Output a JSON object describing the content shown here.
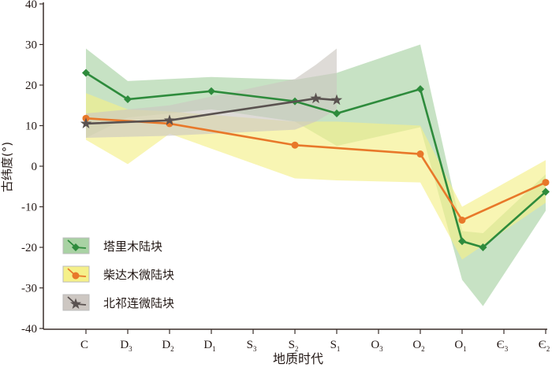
{
  "chart_data": {
    "type": "line",
    "xlabel": "地质时代",
    "ylabel": "古纬度(°)",
    "ylim": [
      -40,
      40
    ],
    "yticks": [
      "40",
      "30",
      "20",
      "10",
      "0",
      "-10",
      "-20",
      "-30",
      "-40"
    ],
    "ytick_values": [
      40,
      30,
      20,
      10,
      0,
      -10,
      -20,
      -30,
      -40
    ],
    "categories": [
      {
        "base": "C",
        "sub": ""
      },
      {
        "base": "D",
        "sub": "3"
      },
      {
        "base": "D",
        "sub": "2"
      },
      {
        "base": "D",
        "sub": "1"
      },
      {
        "base": "S",
        "sub": "3"
      },
      {
        "base": "S",
        "sub": "2"
      },
      {
        "base": "S",
        "sub": "1"
      },
      {
        "base": "O",
        "sub": "3"
      },
      {
        "base": "O",
        "sub": "2"
      },
      {
        "base": "O",
        "sub": "1"
      },
      {
        "base": "Є",
        "sub": "3"
      },
      {
        "base": "Є",
        "sub": "2"
      }
    ],
    "series": [
      {
        "name": "塔里木陆块",
        "color": "#2e8b3c",
        "band_color": "#a9d2a4",
        "marker": "diamond",
        "points": [
          [
            0,
            23
          ],
          [
            1,
            16.5
          ],
          [
            3,
            18.5
          ],
          [
            5,
            16
          ],
          [
            6,
            13
          ],
          [
            8,
            19
          ],
          [
            9,
            -18.5
          ],
          [
            9.5,
            -20
          ],
          [
            11,
            -6.3
          ]
        ],
        "band": [
          [
            0,
            29,
            7
          ],
          [
            1,
            21,
            12
          ],
          [
            3,
            22,
            14
          ],
          [
            5,
            21.3,
            11
          ],
          [
            6,
            23,
            5
          ],
          [
            8,
            30,
            9.6
          ],
          [
            9,
            -16,
            -28
          ],
          [
            9.5,
            -16.5,
            -34.5
          ],
          [
            11,
            -2,
            -11
          ]
        ]
      },
      {
        "name": "柴达木微陆块",
        "color": "#e8782a",
        "band_color": "#f5f08a",
        "marker": "circle",
        "points": [
          [
            0,
            11.8
          ],
          [
            2,
            10.5
          ],
          [
            5,
            5.2
          ],
          [
            8,
            3
          ],
          [
            9,
            -13.3
          ],
          [
            11,
            -4
          ]
        ],
        "band": [
          [
            0,
            18,
            6.5
          ],
          [
            1,
            14,
            0.5
          ],
          [
            2,
            13.5,
            8
          ],
          [
            5,
            11,
            -3
          ],
          [
            6,
            11,
            -3.5
          ],
          [
            8,
            10,
            -4
          ],
          [
            9,
            -10,
            -23
          ],
          [
            11,
            1.5,
            -9
          ]
        ]
      },
      {
        "name": "北祁连微陆块",
        "color": "#5a5250",
        "band_color": "#cdc7c2",
        "marker": "star",
        "points": [
          [
            0,
            10.5
          ],
          [
            2,
            11.3
          ],
          [
            5.5,
            16.7
          ],
          [
            6,
            16.3
          ]
        ],
        "band": [
          [
            0,
            13,
            7
          ],
          [
            2,
            15,
            7.5
          ],
          [
            5,
            21.5,
            9
          ],
          [
            5.5,
            25,
            11
          ],
          [
            6,
            29,
            14
          ]
        ]
      }
    ]
  }
}
